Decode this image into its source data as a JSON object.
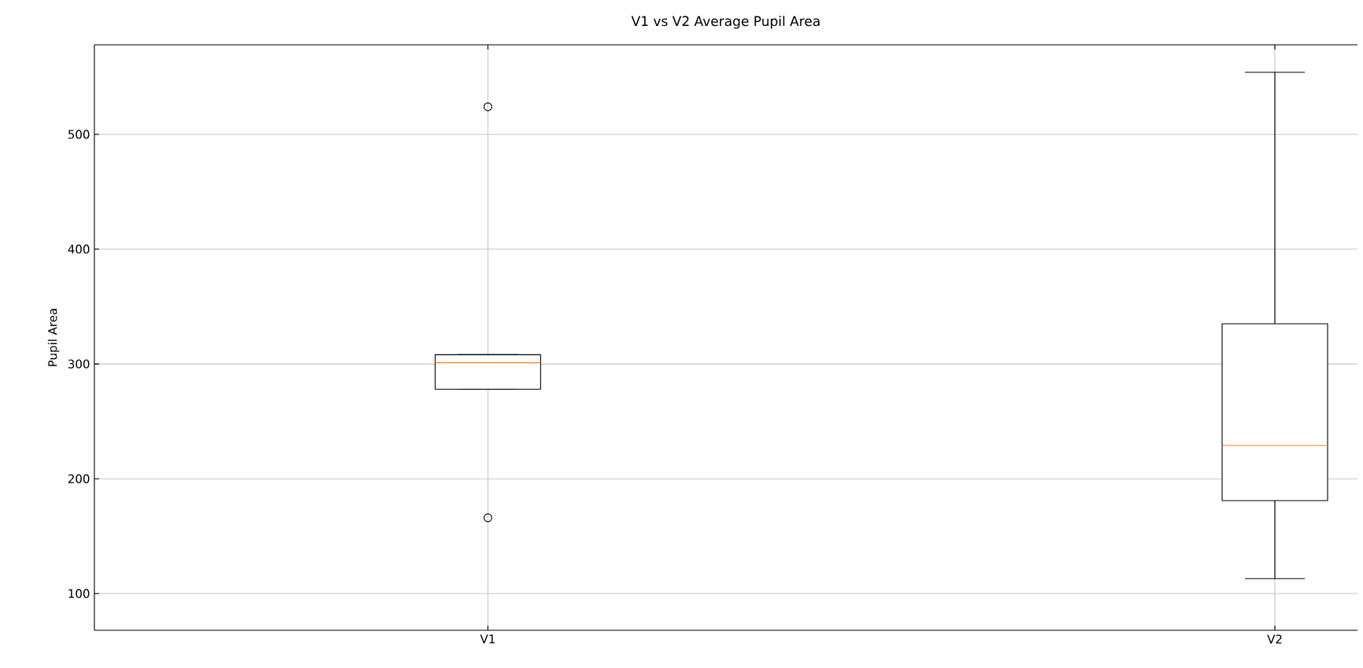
{
  "chart_data": {
    "type": "box",
    "title": "V1 vs V2 Average Pupil Area",
    "ylabel": "Pupil Area",
    "categories": [
      "V1",
      "V2"
    ],
    "boxes": [
      {
        "low": 278,
        "q1": 278,
        "median": 301,
        "q3": 308,
        "high": 308,
        "outliers": [
          524,
          166
        ]
      },
      {
        "low": 113,
        "q1": 181,
        "median": 229,
        "q3": 335,
        "high": 554
      }
    ],
    "ylim": [
      68,
      578
    ],
    "yticks": [
      100,
      200,
      300,
      400,
      500
    ],
    "grid": true
  }
}
